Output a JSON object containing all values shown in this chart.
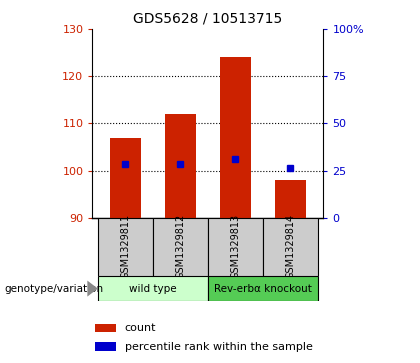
{
  "title": "GDS5628 / 10513715",
  "samples": [
    "GSM1329811",
    "GSM1329812",
    "GSM1329813",
    "GSM1329814"
  ],
  "counts": [
    107.0,
    112.0,
    124.0,
    98.0
  ],
  "percentile_values": [
    101.5,
    101.5,
    102.5,
    100.5
  ],
  "bar_color": "#cc2200",
  "dot_color": "#0000cc",
  "ylim_left": [
    90,
    130
  ],
  "ylim_right": [
    0,
    100
  ],
  "yticks_left": [
    90,
    100,
    110,
    120,
    130
  ],
  "yticks_right": [
    0,
    25,
    50,
    75,
    100
  ],
  "grid_vals": [
    100,
    110,
    120
  ],
  "genotype_groups": [
    {
      "label": "wild type",
      "samples": [
        0,
        1
      ],
      "color": "#ccffcc"
    },
    {
      "label": "Rev-erbα knockout",
      "samples": [
        2,
        3
      ],
      "color": "#55cc55"
    }
  ],
  "sample_box_color": "#cccccc",
  "legend_count_label": "count",
  "legend_pct_label": "percentile rank within the sample",
  "genotype_label": "genotype/variation"
}
